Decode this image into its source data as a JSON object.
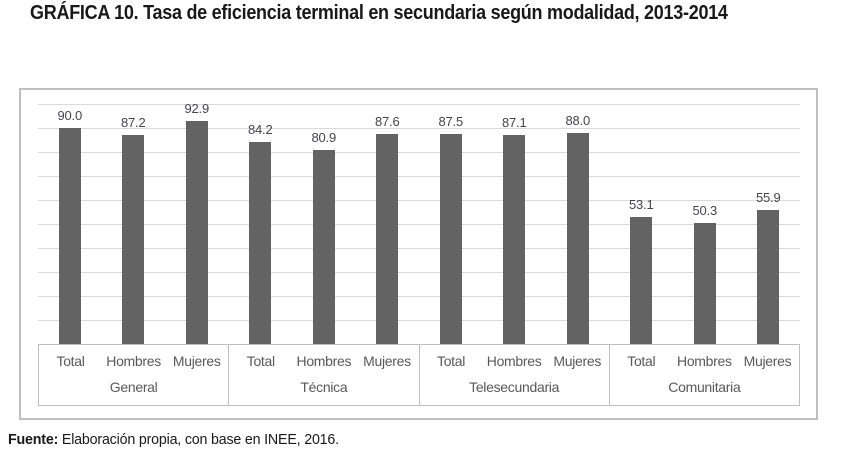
{
  "page": {
    "title": "GRÁFICA 10. Tasa de eficiencia terminal en secundaria según modalidad, 2013-2014",
    "source_label": "Fuente:",
    "source_text": " Elaboración propia, con base en INEE, 2016."
  },
  "chart_data": {
    "type": "bar",
    "title": "GRÁFICA 10. Tasa de eficiencia terminal en secundaria según modalidad, 2013-2014",
    "groups": [
      {
        "label": "General",
        "sublabels": [
          "Total",
          "Hombres",
          "Mujeres"
        ],
        "values": [
          90.0,
          87.2,
          92.9
        ]
      },
      {
        "label": "Técnica",
        "sublabels": [
          "Total",
          "Hombres",
          "Mujeres"
        ],
        "values": [
          84.2,
          80.9,
          87.6
        ]
      },
      {
        "label": "Telesecundaria",
        "sublabels": [
          "Total",
          "Hombres",
          "Mujeres"
        ],
        "values": [
          87.5,
          87.1,
          88.0
        ]
      },
      {
        "label": "Comunitaria",
        "sublabels": [
          "Total",
          "Hombres",
          "Mujeres"
        ],
        "values": [
          53.1,
          50.3,
          55.9
        ]
      }
    ],
    "ylim": [
      0,
      100
    ],
    "grid_step": 10,
    "grid": true,
    "y_axis_labels_visible": false,
    "legend": "none",
    "value_label_decimals": 1,
    "source": "Fuente: Elaboración propia, con base en INEE, 2016.",
    "colors": {
      "bar_fill": "#636363",
      "gridline": "#d9d9d9",
      "axis_line": "#bfbfbf",
      "value_label": "#44444d",
      "category_label": "#595959",
      "title_text": "#191919"
    }
  }
}
